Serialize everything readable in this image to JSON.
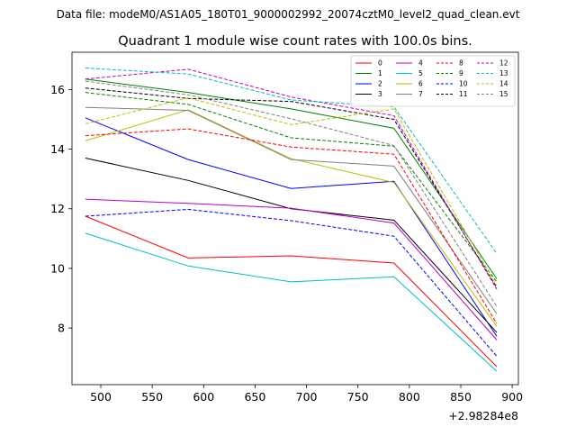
{
  "chart_data": {
    "type": "line",
    "header": "Data file: modeM0/AS1A05_180T01_9000002992_20074cztM0_level2_quad_clean.evt",
    "title": "Quadrant 1 module wise count rates with 100.0s bins.",
    "xlabel": "",
    "ylabel": "",
    "offset_label": "+2.98284e8",
    "xlim": [
      472,
      906
    ],
    "ylim": [
      6.1,
      17.25
    ],
    "x_ticks": [
      500,
      550,
      600,
      650,
      700,
      750,
      800,
      850,
      900
    ],
    "x_tick_labels": [
      "500",
      "550",
      "600",
      "650",
      "700",
      "750",
      "800",
      "850",
      "900"
    ],
    "y_ticks": [
      8,
      10,
      12,
      14,
      16
    ],
    "y_tick_labels": [
      "8",
      "10",
      "12",
      "14",
      "16"
    ],
    "x": [
      485,
      585,
      685,
      785,
      885
    ],
    "legend_position": "top-right",
    "series": [
      {
        "name": "0",
        "color": "#ff0000",
        "dash": "solid",
        "values": [
          11.75,
          10.35,
          10.42,
          10.18,
          6.7
        ]
      },
      {
        "name": "1",
        "color": "#008000",
        "dash": "solid",
        "values": [
          16.35,
          15.9,
          15.35,
          14.7,
          9.65
        ]
      },
      {
        "name": "2",
        "color": "#0000ff",
        "dash": "solid",
        "values": [
          15.05,
          13.65,
          12.68,
          12.92,
          7.72
        ]
      },
      {
        "name": "3",
        "color": "#000000",
        "dash": "solid",
        "values": [
          13.7,
          12.95,
          12.0,
          11.62,
          7.85
        ]
      },
      {
        "name": "4",
        "color": "#bf00bf",
        "dash": "solid",
        "values": [
          12.32,
          12.18,
          12.02,
          11.52,
          7.6
        ]
      },
      {
        "name": "5",
        "color": "#00bfbf",
        "dash": "solid",
        "values": [
          11.18,
          10.08,
          9.55,
          9.72,
          6.55
        ]
      },
      {
        "name": "6",
        "color": "#bfbf00",
        "dash": "solid",
        "values": [
          14.28,
          15.32,
          13.68,
          12.88,
          8.05
        ]
      },
      {
        "name": "7",
        "color": "#808080",
        "dash": "solid",
        "values": [
          15.4,
          15.3,
          13.65,
          13.43,
          8.48
        ]
      },
      {
        "name": "8",
        "color": "#ff0000",
        "dash": "dashed",
        "values": [
          14.45,
          14.68,
          14.07,
          13.83,
          8.15
        ]
      },
      {
        "name": "9",
        "color": "#008000",
        "dash": "dashed",
        "values": [
          15.9,
          15.5,
          14.38,
          14.1,
          9.55
        ]
      },
      {
        "name": "10",
        "color": "#0000ff",
        "dash": "dashed",
        "values": [
          11.75,
          11.98,
          11.6,
          11.08,
          7.05
        ]
      },
      {
        "name": "11",
        "color": "#000000",
        "dash": "dashed",
        "values": [
          16.05,
          15.7,
          15.6,
          15.0,
          9.35
        ]
      },
      {
        "name": "12",
        "color": "#bf00bf",
        "dash": "dashed",
        "values": [
          16.35,
          16.68,
          15.75,
          15.12,
          9.3
        ]
      },
      {
        "name": "13",
        "color": "#00bfbf",
        "dash": "dashed",
        "values": [
          16.72,
          16.52,
          15.65,
          15.42,
          10.5
        ]
      },
      {
        "name": "14",
        "color": "#bfbf00",
        "dash": "dashed",
        "values": [
          14.85,
          15.72,
          14.82,
          15.35,
          9.42
        ]
      },
      {
        "name": "15",
        "color": "#808080",
        "dash": "dashed",
        "values": [
          16.28,
          15.82,
          15.02,
          14.12,
          8.72
        ]
      }
    ]
  }
}
